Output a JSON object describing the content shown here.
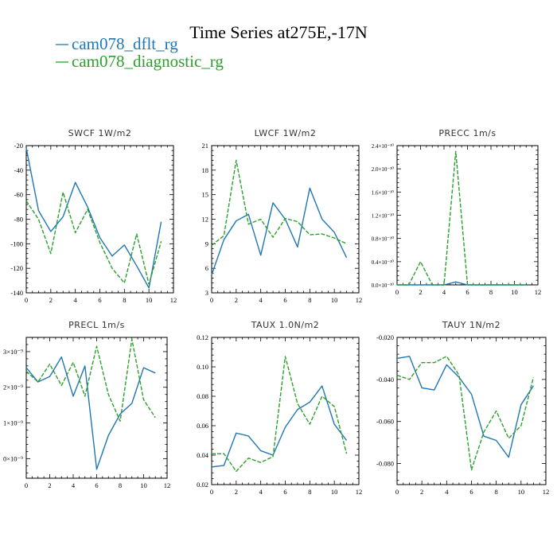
{
  "figure": {
    "title": "Time Series at275E,-17N"
  },
  "legend": [
    {
      "label": "cam078_dflt_rg",
      "color": "#1f77b4",
      "dash": ""
    },
    {
      "label": "cam078_diagnostic_rg",
      "color": "#2ca02c",
      "dash": "5,2"
    }
  ],
  "chart_data": [
    {
      "type": "line",
      "title": "SWCF   1W/m2",
      "xlim": [
        0,
        12
      ],
      "ylim": [
        -140,
        -20
      ],
      "xticks": [
        0,
        2,
        4,
        6,
        8,
        10,
        12
      ],
      "yticks": [
        -140,
        -120,
        -100,
        -80,
        -60,
        -40,
        -20
      ],
      "ytick_labels": [
        "-140",
        "-120",
        "-100",
        "-80",
        "-60",
        "-40",
        "-20"
      ],
      "x": [
        0,
        1,
        2,
        3,
        4,
        5,
        6,
        7,
        8,
        9,
        10,
        11
      ],
      "series": [
        {
          "name": "cam078_dflt_rg",
          "values": [
            -22,
            -73,
            -90,
            -78,
            -50,
            -70,
            -95,
            -110,
            -101,
            -118,
            -136,
            -82
          ]
        },
        {
          "name": "cam078_diagnostic_rg",
          "values": [
            -65,
            -80,
            -108,
            -58,
            -91,
            -72,
            -99,
            -120,
            -132,
            -92,
            -133,
            -98
          ]
        }
      ]
    },
    {
      "type": "line",
      "title": "LWCF   1W/m2",
      "xlim": [
        0,
        12
      ],
      "ylim": [
        3,
        21
      ],
      "xticks": [
        0,
        2,
        4,
        6,
        8,
        10,
        12
      ],
      "yticks": [
        3,
        6,
        9,
        12,
        15,
        18,
        21
      ],
      "ytick_labels": [
        "3",
        "6",
        "9",
        "12",
        "15",
        "18",
        "21"
      ],
      "x": [
        0,
        1,
        2,
        3,
        4,
        5,
        6,
        7,
        8,
        9,
        10,
        11
      ],
      "series": [
        {
          "name": "cam078_dflt_rg",
          "values": [
            5.2,
            9.5,
            11.8,
            12.6,
            7.6,
            14.0,
            12.0,
            8.6,
            15.8,
            12.0,
            10.4,
            7.3
          ]
        },
        {
          "name": "cam078_diagnostic_rg",
          "values": [
            8.8,
            10.0,
            19.2,
            11.4,
            12.0,
            9.8,
            12.1,
            11.7,
            10.1,
            10.2,
            9.7,
            9.0
          ]
        }
      ]
    },
    {
      "type": "line",
      "title": "PRECC   1m/s",
      "xlim": [
        0,
        12
      ],
      "ylim": [
        0,
        2.4e-10
      ],
      "xticks": [
        0,
        2,
        4,
        6,
        8,
        10,
        12
      ],
      "yticks": [
        0,
        4e-11,
        8e-11,
        1.2e-10,
        1.6e-10,
        2e-10,
        2.4e-10
      ],
      "ytick_labels": [
        "0.0×10⁻¹⁰",
        "0.4×10⁻¹⁰",
        "0.8×10⁻¹⁰",
        "1.2×10⁻¹⁰",
        "1.6×10⁻¹⁰",
        "2.0×10⁻¹⁰",
        "2.4×10⁻¹⁰"
      ],
      "x": [
        0,
        1,
        2,
        3,
        4,
        5,
        6,
        7,
        8,
        9,
        10,
        11
      ],
      "series": [
        {
          "name": "cam078_dflt_rg",
          "values": [
            0,
            0,
            0,
            0,
            0,
            5e-12,
            0,
            0,
            0,
            0,
            0,
            0
          ]
        },
        {
          "name": "cam078_diagnostic_rg",
          "values": [
            0,
            0,
            4e-11,
            0,
            0,
            2.3e-10,
            0,
            0,
            0,
            0,
            0,
            0
          ]
        }
      ]
    },
    {
      "type": "line",
      "title": "PRECL   1m/s",
      "xlim": [
        0,
        12
      ],
      "ylim": [
        -0.55,
        3.4
      ],
      "xticks": [
        0,
        2,
        4,
        6,
        8,
        10,
        12
      ],
      "yticks": [
        0,
        1,
        2,
        3
      ],
      "ytick_labels": [
        "0×10⁻⁹",
        "1×10⁻⁹",
        "2×10⁻⁹",
        "3×10⁻⁹"
      ],
      "ytick_partial": true,
      "x": [
        0,
        1,
        2,
        3,
        4,
        5,
        6,
        7,
        8,
        9,
        10,
        11
      ],
      "series": [
        {
          "name": "cam078_dflt_rg",
          "values": [
            2.55,
            2.15,
            2.3,
            2.85,
            1.75,
            2.6,
            -0.3,
            0.65,
            1.25,
            1.55,
            2.55,
            2.4
          ]
        },
        {
          "name": "cam078_diagnostic_rg",
          "values": [
            2.45,
            2.15,
            2.65,
            2.05,
            2.7,
            1.75,
            3.15,
            1.8,
            1.05,
            3.35,
            1.65,
            1.15
          ]
        }
      ]
    },
    {
      "type": "line",
      "title": "TAUX   1.0N/m2",
      "xlim": [
        0,
        12
      ],
      "ylim": [
        0.02,
        0.12
      ],
      "xticks": [
        0,
        2,
        4,
        6,
        8,
        10,
        12
      ],
      "yticks": [
        0.02,
        0.04,
        0.06,
        0.08,
        0.1,
        0.12
      ],
      "ytick_labels": [
        "0.02",
        "0.04",
        "0.06",
        "0.08",
        "0.10",
        "0.12"
      ],
      "x": [
        0,
        1,
        2,
        3,
        4,
        5,
        6,
        7,
        8,
        9,
        10,
        11
      ],
      "series": [
        {
          "name": "cam078_dflt_rg",
          "values": [
            0.032,
            0.033,
            0.055,
            0.053,
            0.043,
            0.04,
            0.059,
            0.071,
            0.076,
            0.087,
            0.061,
            0.05
          ]
        },
        {
          "name": "cam078_diagnostic_rg",
          "values": [
            0.041,
            0.041,
            0.029,
            0.038,
            0.035,
            0.039,
            0.107,
            0.075,
            0.061,
            0.08,
            0.073,
            0.041
          ]
        }
      ]
    },
    {
      "type": "line",
      "title": "TAUY   1N/m2",
      "xlim": [
        0,
        12
      ],
      "ylim": [
        -0.09,
        -0.02
      ],
      "xticks": [
        0,
        2,
        4,
        6,
        8,
        10,
        12
      ],
      "yticks": [
        -0.08,
        -0.06,
        -0.04,
        -0.02
      ],
      "ytick_labels": [
        "-0.080",
        "-0.060",
        "-0.040",
        "-0.020"
      ],
      "x": [
        0,
        1,
        2,
        3,
        4,
        5,
        6,
        7,
        8,
        9,
        10,
        11
      ],
      "series": [
        {
          "name": "cam078_dflt_rg",
          "values": [
            -0.03,
            -0.029,
            -0.044,
            -0.045,
            -0.033,
            -0.039,
            -0.047,
            -0.067,
            -0.069,
            -0.077,
            -0.052,
            -0.043
          ]
        },
        {
          "name": "cam078_diagnostic_rg",
          "values": [
            -0.038,
            -0.04,
            -0.032,
            -0.032,
            -0.029,
            -0.038,
            -0.083,
            -0.065,
            -0.055,
            -0.068,
            -0.062,
            -0.039
          ]
        }
      ]
    }
  ]
}
